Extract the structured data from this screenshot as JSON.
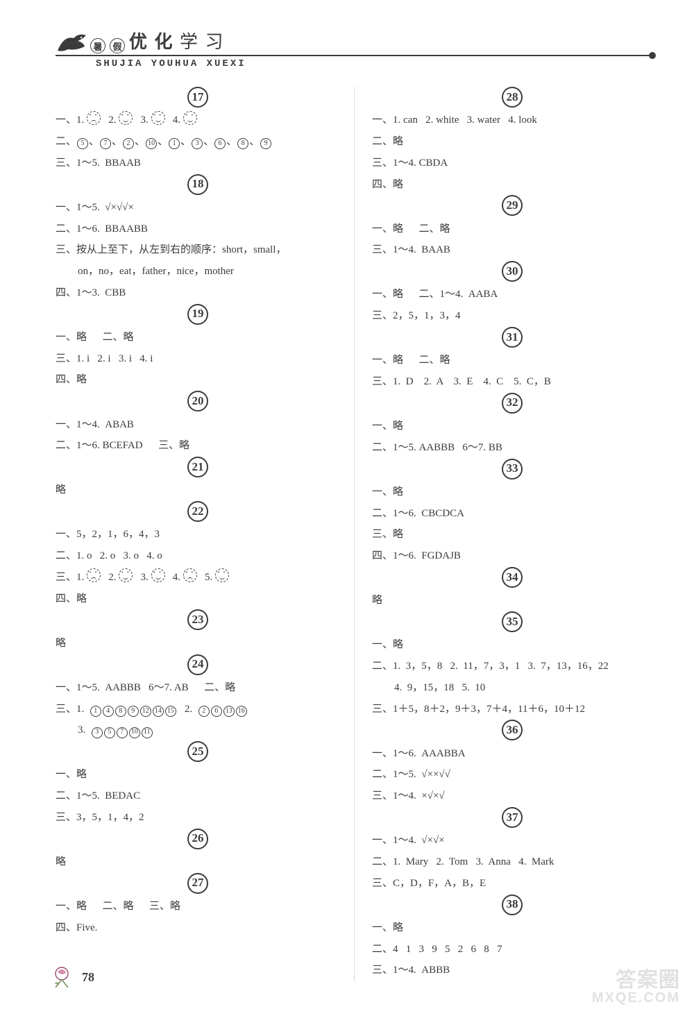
{
  "header": {
    "badge1": "暑",
    "badge2": "假",
    "title_main": "优 化",
    "title_sub": "学 习",
    "pinyin": "SHUJIA YOUHUA XUEXI"
  },
  "sections_left": [
    {
      "num": "17",
      "lines": [
        {
          "fragments": [
            {
              "t": "一、1. "
            },
            {
              "face": "sad"
            },
            {
              "t": "   2. "
            },
            {
              "face": "smile"
            },
            {
              "t": "   3. "
            },
            {
              "face": "smile"
            },
            {
              "t": "   4. "
            },
            {
              "face": "smile"
            }
          ]
        },
        {
          "fragments": [
            {
              "t": "二、"
            },
            {
              "c": "5"
            },
            {
              "t": "、"
            },
            {
              "c": "7"
            },
            {
              "t": "、"
            },
            {
              "c": "2"
            },
            {
              "t": "、"
            },
            {
              "c": "10"
            },
            {
              "t": "、"
            },
            {
              "c": "1"
            },
            {
              "t": "、"
            },
            {
              "c": "3"
            },
            {
              "t": "、"
            },
            {
              "c": "6"
            },
            {
              "t": "、"
            },
            {
              "c": "8"
            },
            {
              "t": "、"
            },
            {
              "c": "9"
            }
          ]
        },
        {
          "fragments": [
            {
              "t": "三、1～5.  BBAAB"
            }
          ]
        }
      ]
    },
    {
      "num": "18",
      "lines": [
        {
          "fragments": [
            {
              "t": "一、1～5.  √×√√×"
            }
          ]
        },
        {
          "fragments": [
            {
              "t": "二、1～6.  BBAABB"
            }
          ]
        },
        {
          "fragments": [
            {
              "t": "三、按从上至下，从左到右的顺序：short，small，"
            }
          ]
        },
        {
          "indent": true,
          "fragments": [
            {
              "t": "on，no，eat，father，nice，mother"
            }
          ]
        },
        {
          "fragments": [
            {
              "t": "四、1～3.  CBB"
            }
          ]
        }
      ]
    },
    {
      "num": "19",
      "lines": [
        {
          "fragments": [
            {
              "t": "一、略      二、略"
            }
          ]
        },
        {
          "fragments": [
            {
              "t": "三、1. i   2. i   3. i   4. i"
            }
          ]
        },
        {
          "fragments": [
            {
              "t": "四、略"
            }
          ]
        }
      ]
    },
    {
      "num": "20",
      "lines": [
        {
          "fragments": [
            {
              "t": "一、1～4.  ABAB"
            }
          ]
        },
        {
          "fragments": [
            {
              "t": "二、1～6. BCEFAD      三、略"
            }
          ]
        }
      ]
    },
    {
      "num": "21",
      "lines": [
        {
          "fragments": [
            {
              "t": "略"
            }
          ]
        }
      ]
    },
    {
      "num": "22",
      "lines": [
        {
          "fragments": [
            {
              "t": "一、5，2，1，6，4，3"
            }
          ]
        },
        {
          "fragments": [
            {
              "t": "二、1. o   2. o   3. o   4. o"
            }
          ]
        },
        {
          "fragments": [
            {
              "t": "三、1. "
            },
            {
              "face": "sad"
            },
            {
              "t": "   2. "
            },
            {
              "face": "smile"
            },
            {
              "t": "   3. "
            },
            {
              "face": "smile"
            },
            {
              "t": "   4. "
            },
            {
              "face": "sad"
            },
            {
              "t": "   5. "
            },
            {
              "face": "smile"
            }
          ]
        },
        {
          "fragments": [
            {
              "t": "四、略"
            }
          ]
        }
      ]
    },
    {
      "num": "23",
      "lines": [
        {
          "fragments": [
            {
              "t": "略"
            }
          ]
        }
      ]
    },
    {
      "num": "24",
      "lines": [
        {
          "fragments": [
            {
              "t": "一、1～5.  AABBB   6～7. AB      二、略"
            }
          ]
        },
        {
          "fragments": [
            {
              "t": "三、1.  "
            },
            {
              "c": "1"
            },
            {
              "c": "4"
            },
            {
              "c": "8"
            },
            {
              "c": "9"
            },
            {
              "c": "12"
            },
            {
              "c": "14"
            },
            {
              "c": "15"
            },
            {
              "t": "   2.  "
            },
            {
              "c": "2"
            },
            {
              "c": "6"
            },
            {
              "c": "13"
            },
            {
              "c": "16"
            }
          ]
        },
        {
          "indent": true,
          "fragments": [
            {
              "t": "3.  "
            },
            {
              "c": "3"
            },
            {
              "c": "5"
            },
            {
              "c": "7"
            },
            {
              "c": "10"
            },
            {
              "c": "11"
            }
          ]
        }
      ]
    },
    {
      "num": "25",
      "lines": [
        {
          "fragments": [
            {
              "t": "一、略"
            }
          ]
        },
        {
          "fragments": [
            {
              "t": "二、1～5.  BEDAC"
            }
          ]
        },
        {
          "fragments": [
            {
              "t": "三、3，5，1，4，2"
            }
          ]
        }
      ]
    },
    {
      "num": "26",
      "lines": [
        {
          "fragments": [
            {
              "t": "略"
            }
          ]
        }
      ]
    },
    {
      "num": "27",
      "lines": [
        {
          "fragments": [
            {
              "t": "一、略      二、略      三、略"
            }
          ]
        },
        {
          "fragments": [
            {
              "t": "四、Five."
            }
          ]
        }
      ]
    }
  ],
  "sections_right": [
    {
      "num": "28",
      "lines": [
        {
          "fragments": [
            {
              "t": "一、1. can   2. white   3. water   4. look"
            }
          ]
        },
        {
          "fragments": [
            {
              "t": "二、略"
            }
          ]
        },
        {
          "fragments": [
            {
              "t": "三、1～4. CBDA"
            }
          ]
        },
        {
          "fragments": [
            {
              "t": "四、略"
            }
          ]
        }
      ]
    },
    {
      "num": "29",
      "lines": [
        {
          "fragments": [
            {
              "t": "一、略      二、略"
            }
          ]
        },
        {
          "fragments": [
            {
              "t": "三、1～4.  BAAB"
            }
          ]
        }
      ]
    },
    {
      "num": "30",
      "lines": [
        {
          "fragments": [
            {
              "t": "一、略      二、1～4.  AABA"
            }
          ]
        },
        {
          "fragments": [
            {
              "t": "三、2，5，1，3，4"
            }
          ]
        }
      ]
    },
    {
      "num": "31",
      "lines": [
        {
          "fragments": [
            {
              "t": "一、略      二、略"
            }
          ]
        },
        {
          "fragments": [
            {
              "t": "三、1.  D    2.  A    3.  E    4.  C    5.  C，B"
            }
          ]
        }
      ]
    },
    {
      "num": "32",
      "lines": [
        {
          "fragments": [
            {
              "t": "一、略"
            }
          ]
        },
        {
          "fragments": [
            {
              "t": "二、1～5. AABBB   6～7. BB"
            }
          ]
        }
      ]
    },
    {
      "num": "33",
      "lines": [
        {
          "fragments": [
            {
              "t": "一、略"
            }
          ]
        },
        {
          "fragments": [
            {
              "t": "二、1～6.  CBCDCA"
            }
          ]
        },
        {
          "fragments": [
            {
              "t": "三、略"
            }
          ]
        },
        {
          "fragments": [
            {
              "t": "四、1～6.  FGDAJB"
            }
          ]
        }
      ]
    },
    {
      "num": "34",
      "lines": [
        {
          "fragments": [
            {
              "t": "略"
            }
          ]
        }
      ]
    },
    {
      "num": "35",
      "lines": [
        {
          "fragments": [
            {
              "t": "一、略"
            }
          ]
        },
        {
          "fragments": [
            {
              "t": "二、1.  3，5，8   2.  11，7，3，1   3.  7，13，16，22"
            }
          ]
        },
        {
          "indent": true,
          "fragments": [
            {
              "t": "4.  9，15，18   5.  10"
            }
          ]
        },
        {
          "fragments": [
            {
              "t": "三、1＋5，8＋2，9＋3，7＋4，11＋6，10＋12"
            }
          ]
        }
      ]
    },
    {
      "num": "36",
      "lines": [
        {
          "fragments": [
            {
              "t": "一、1～6.  AAABBA"
            }
          ]
        },
        {
          "fragments": [
            {
              "t": "二、1～5.  √××√√"
            }
          ]
        },
        {
          "fragments": [
            {
              "t": "三、1～4.  ×√×√"
            }
          ]
        }
      ]
    },
    {
      "num": "37",
      "lines": [
        {
          "fragments": [
            {
              "t": "一、1～4.  √×√×"
            }
          ]
        },
        {
          "fragments": [
            {
              "t": "二、1.  Mary   2.  Tom   3.  Anna   4.  Mark"
            }
          ]
        },
        {
          "fragments": [
            {
              "t": "三、C，D，F，A，B，E"
            }
          ]
        }
      ]
    },
    {
      "num": "38",
      "lines": [
        {
          "fragments": [
            {
              "t": "一、略"
            }
          ]
        },
        {
          "fragments": [
            {
              "t": "二、4   1   3   9   5   2   6   8   7"
            }
          ]
        },
        {
          "fragments": [
            {
              "t": "三、1～4.  ABBB"
            }
          ]
        }
      ]
    }
  ],
  "footer": {
    "page": "78"
  },
  "watermark": {
    "line1": "答案圈",
    "line2": "MXQE.COM"
  }
}
